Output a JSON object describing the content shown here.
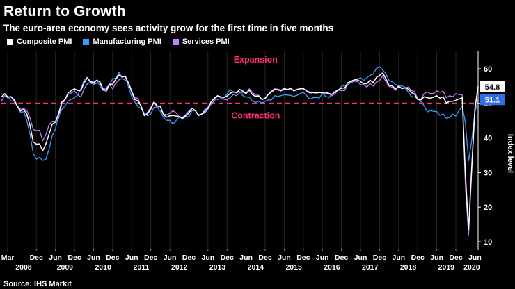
{
  "header": {
    "title": "Return to Growth",
    "subtitle": "The euro-area economy sees activity grow for the first time in five months"
  },
  "legend": [
    {
      "label": "Composite PMI",
      "color": "#ffffff"
    },
    {
      "label": "Manufacturing PMI",
      "color": "#3f9bff"
    },
    {
      "label": "Services PMI",
      "color": "#c77dff"
    }
  ],
  "source": "Source: IHS Markit",
  "axis": {
    "y_title": "Index level",
    "y_ticks": [
      10,
      20,
      30,
      40,
      50,
      60
    ]
  },
  "threshold": {
    "value": 50,
    "color": "#ff2e6d"
  },
  "annotations": [
    {
      "text": "Expansion",
      "color": "#ff2e6d",
      "month": 80,
      "value": 61.8
    },
    {
      "text": "Contraction",
      "color": "#ff2e6d",
      "month": 80,
      "value": 45.6
    }
  ],
  "badges": [
    {
      "value": "54.8",
      "bg": "#ffffff",
      "fg": "#000000",
      "v": 54.8
    },
    {
      "value": "51.1",
      "bg": "#2f6fdf",
      "fg": "#ffffff",
      "v": 51.1
    }
  ],
  "chart_data": {
    "type": "line",
    "title": "Return to Growth",
    "subtitle": "The euro-area economy sees activity grow for the first time in five months",
    "x_start": "2008-01",
    "x_end": "2020-07",
    "ylabel": "Index level",
    "ylim": [
      8,
      63
    ],
    "grid": "vertical",
    "legend_position": "top-left",
    "x_ticks": [
      {
        "label": "Mar",
        "m": 2
      },
      {
        "label": "Dec",
        "m": 11
      },
      {
        "label": "Jun",
        "m": 17
      },
      {
        "label": "Dec",
        "m": 23
      },
      {
        "label": "Jun",
        "m": 29
      },
      {
        "label": "Dec",
        "m": 35
      },
      {
        "label": "Jun",
        "m": 41
      },
      {
        "label": "Dec",
        "m": 47
      },
      {
        "label": "Jun",
        "m": 53
      },
      {
        "label": "Dec",
        "m": 59
      },
      {
        "label": "Jun",
        "m": 65
      },
      {
        "label": "Dec",
        "m": 71
      },
      {
        "label": "Jun",
        "m": 77
      },
      {
        "label": "Dec",
        "m": 83
      },
      {
        "label": "Jun",
        "m": 89
      },
      {
        "label": "Dec",
        "m": 95
      },
      {
        "label": "Jun",
        "m": 101
      },
      {
        "label": "Dec",
        "m": 107
      },
      {
        "label": "Jun",
        "m": 113
      },
      {
        "label": "Dec",
        "m": 119
      },
      {
        "label": "Jun",
        "m": 125
      },
      {
        "label": "Dec",
        "m": 131
      },
      {
        "label": "Jun",
        "m": 137
      },
      {
        "label": "Dec",
        "m": 143
      },
      {
        "label": "Jun",
        "m": 149
      }
    ],
    "year_ticks": [
      {
        "label": "2008",
        "m": 7
      },
      {
        "label": "2009",
        "m": 20
      },
      {
        "label": "2010",
        "m": 32
      },
      {
        "label": "2011",
        "m": 44
      },
      {
        "label": "2012",
        "m": 56
      },
      {
        "label": "2013",
        "m": 68
      },
      {
        "label": "2014",
        "m": 80
      },
      {
        "label": "2015",
        "m": 92
      },
      {
        "label": "2016",
        "m": 104
      },
      {
        "label": "2017",
        "m": 116
      },
      {
        "label": "2018",
        "m": 128
      },
      {
        "label": "2019",
        "m": 140
      },
      {
        "label": "2020",
        "m": 148
      }
    ],
    "series": [
      {
        "name": "Composite PMI",
        "color": "#ffffff",
        "values": [
          51.8,
          52.8,
          51.8,
          51.9,
          51.1,
          49.3,
          47.8,
          48.2,
          46.9,
          43.6,
          38.9,
          38.2,
          38.3,
          36.2,
          38.3,
          41.1,
          44.0,
          44.6,
          47.0,
          50.4,
          51.1,
          53.0,
          53.7,
          54.2,
          53.7,
          53.7,
          55.9,
          57.3,
          56.4,
          56.0,
          56.7,
          56.2,
          54.1,
          53.8,
          55.5,
          55.5,
          57.0,
          58.2,
          57.6,
          57.8,
          55.8,
          53.3,
          51.1,
          50.7,
          49.1,
          46.5,
          47.0,
          48.3,
          50.4,
          49.3,
          49.1,
          46.7,
          46.0,
          46.4,
          46.5,
          46.3,
          46.1,
          45.7,
          46.5,
          47.2,
          48.6,
          47.9,
          46.5,
          46.9,
          47.7,
          48.7,
          50.5,
          51.5,
          52.2,
          51.9,
          51.7,
          52.1,
          52.9,
          53.3,
          53.1,
          54.0,
          53.5,
          52.8,
          53.8,
          52.5,
          52.0,
          52.1,
          51.1,
          51.4,
          52.6,
          53.3,
          54.0,
          53.9,
          53.6,
          54.2,
          53.9,
          54.3,
          53.6,
          53.9,
          54.2,
          54.3,
          53.6,
          53.0,
          53.1,
          53.0,
          53.1,
          53.1,
          53.2,
          52.9,
          52.6,
          53.3,
          53.9,
          54.4,
          54.4,
          56.0,
          56.4,
          56.8,
          56.8,
          56.3,
          55.7,
          55.7,
          56.7,
          56.0,
          57.5,
          58.1,
          58.8,
          57.1,
          55.2,
          55.1,
          54.1,
          54.9,
          54.3,
          54.5,
          54.1,
          53.1,
          52.7,
          51.1,
          51.0,
          51.9,
          51.6,
          51.5,
          51.8,
          52.2,
          51.5,
          51.9,
          50.1,
          50.6,
          50.6,
          50.9,
          51.3,
          51.6,
          29.7,
          13.6,
          31.9,
          48.5,
          54.8
        ]
      },
      {
        "name": "Manufacturing PMI",
        "color": "#3f9bff",
        "values": [
          52.8,
          52.3,
          52.0,
          50.7,
          50.6,
          49.2,
          47.4,
          47.6,
          45.0,
          41.1,
          35.6,
          33.9,
          34.4,
          33.5,
          33.9,
          36.8,
          40.7,
          42.6,
          46.3,
          48.2,
          49.3,
          50.7,
          51.2,
          51.6,
          52.4,
          54.2,
          56.6,
          57.6,
          55.8,
          55.6,
          56.7,
          55.1,
          53.7,
          54.6,
          55.3,
          57.1,
          57.3,
          59.0,
          57.5,
          58.0,
          54.6,
          52.0,
          50.4,
          49.0,
          48.5,
          47.1,
          46.4,
          46.9,
          48.8,
          49.0,
          47.7,
          45.9,
          45.1,
          45.1,
          44.0,
          45.1,
          46.1,
          45.4,
          46.2,
          46.1,
          47.9,
          47.9,
          46.8,
          46.7,
          48.3,
          48.8,
          50.3,
          51.4,
          51.1,
          51.3,
          51.6,
          52.7,
          54.0,
          53.2,
          53.0,
          53.4,
          52.2,
          51.8,
          51.8,
          50.7,
          50.3,
          50.6,
          50.1,
          50.6,
          51.0,
          51.0,
          52.2,
          52.0,
          52.2,
          52.5,
          52.4,
          52.3,
          52.0,
          52.3,
          52.8,
          53.2,
          52.3,
          51.2,
          51.6,
          51.7,
          51.5,
          52.8,
          52.0,
          51.7,
          52.6,
          53.5,
          53.7,
          54.9,
          55.2,
          55.4,
          56.2,
          56.7,
          57.0,
          57.4,
          56.6,
          57.4,
          58.1,
          58.5,
          60.1,
          60.6,
          59.6,
          58.6,
          56.6,
          56.2,
          55.5,
          54.9,
          55.1,
          54.6,
          53.2,
          52.0,
          51.8,
          51.4,
          50.5,
          49.3,
          47.5,
          47.9,
          47.7,
          47.6,
          46.5,
          47.0,
          45.7,
          45.9,
          46.9,
          46.3,
          47.9,
          49.2,
          44.5,
          33.4,
          39.4,
          47.4,
          51.1
        ]
      },
      {
        "name": "Services PMI",
        "color": "#c77dff",
        "values": [
          50.6,
          52.3,
          51.6,
          52.0,
          50.6,
          49.1,
          48.3,
          48.5,
          48.0,
          45.8,
          42.5,
          42.1,
          42.2,
          39.2,
          40.9,
          43.8,
          44.8,
          44.7,
          45.7,
          49.9,
          50.9,
          52.6,
          53.0,
          53.6,
          52.5,
          51.8,
          54.1,
          55.6,
          56.2,
          55.5,
          55.8,
          55.9,
          54.1,
          53.3,
          55.4,
          54.2,
          55.9,
          56.8,
          57.2,
          56.7,
          56.0,
          53.7,
          51.6,
          51.5,
          48.8,
          46.4,
          47.5,
          48.8,
          50.4,
          48.8,
          49.2,
          46.9,
          46.7,
          47.1,
          47.9,
          47.2,
          46.1,
          46.0,
          46.7,
          47.8,
          48.6,
          47.9,
          46.4,
          47.0,
          47.2,
          48.3,
          49.8,
          50.7,
          52.2,
          51.6,
          51.2,
          51.0,
          51.6,
          52.6,
          52.2,
          53.1,
          53.2,
          52.8,
          54.2,
          53.1,
          52.4,
          52.3,
          51.1,
          51.6,
          52.7,
          53.7,
          54.2,
          54.1,
          53.8,
          54.4,
          54.0,
          54.4,
          53.7,
          54.1,
          54.2,
          54.2,
          53.6,
          53.3,
          53.1,
          53.1,
          53.3,
          52.8,
          52.9,
          52.8,
          52.2,
          52.8,
          53.8,
          53.7,
          53.7,
          55.5,
          56.0,
          56.4,
          56.3,
          55.4,
          55.4,
          54.7,
          55.8,
          55.0,
          56.2,
          56.6,
          58.0,
          56.2,
          54.9,
          54.7,
          53.8,
          55.2,
          54.2,
          54.4,
          54.7,
          53.7,
          53.4,
          51.2,
          51.2,
          52.8,
          53.3,
          52.8,
          52.9,
          53.6,
          53.2,
          53.5,
          51.6,
          52.2,
          51.9,
          52.8,
          52.5,
          52.6,
          26.4,
          12.0,
          30.5,
          48.3,
          55.1
        ]
      }
    ]
  }
}
